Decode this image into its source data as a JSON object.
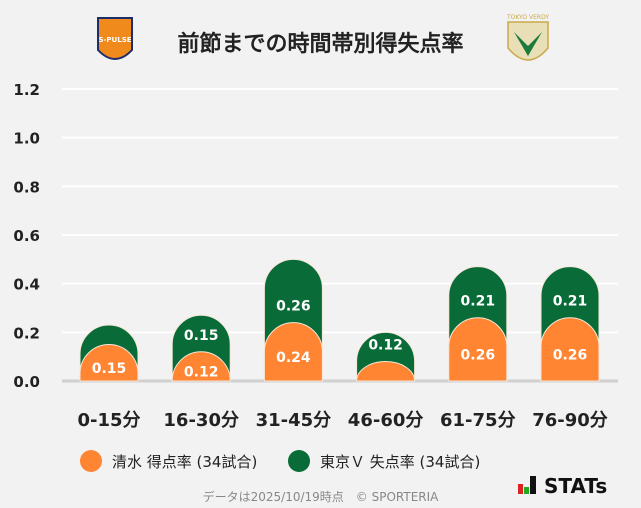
{
  "chart_data": {
    "type": "bar",
    "stacked": true,
    "title": "前節までの時間帯別得失点率",
    "categories": [
      "0-15分",
      "16-30分",
      "31-45分",
      "46-60分",
      "61-75分",
      "76-90分"
    ],
    "series": [
      {
        "name": "清水 得点率 (34試合)",
        "color": "#ff8533",
        "values": [
          0.15,
          0.12,
          0.24,
          0.08,
          0.26,
          0.26
        ],
        "labels": [
          "0.15",
          "0.12",
          "0.24",
          "",
          "0.26",
          "0.26"
        ]
      },
      {
        "name": "東京Ｖ 失点率 (34試合)",
        "color": "#086b38",
        "values": [
          0.08,
          0.15,
          0.26,
          0.12,
          0.21,
          0.21
        ],
        "labels": [
          "",
          "0.15",
          "0.26",
          "0.12",
          "0.21",
          "0.21"
        ]
      }
    ],
    "yticks": [
      "0.0",
      "0.2",
      "0.4",
      "0.6",
      "0.8",
      "1.0",
      "1.2"
    ],
    "ylim": [
      0,
      1.2
    ],
    "grid": true,
    "legend": "bottom"
  },
  "footer": "データは2025/10/19時点　© SPORTERIA",
  "brand": "STATs",
  "logos": {
    "left": "S-PULSE",
    "right": "TOKYO VERDY"
  }
}
